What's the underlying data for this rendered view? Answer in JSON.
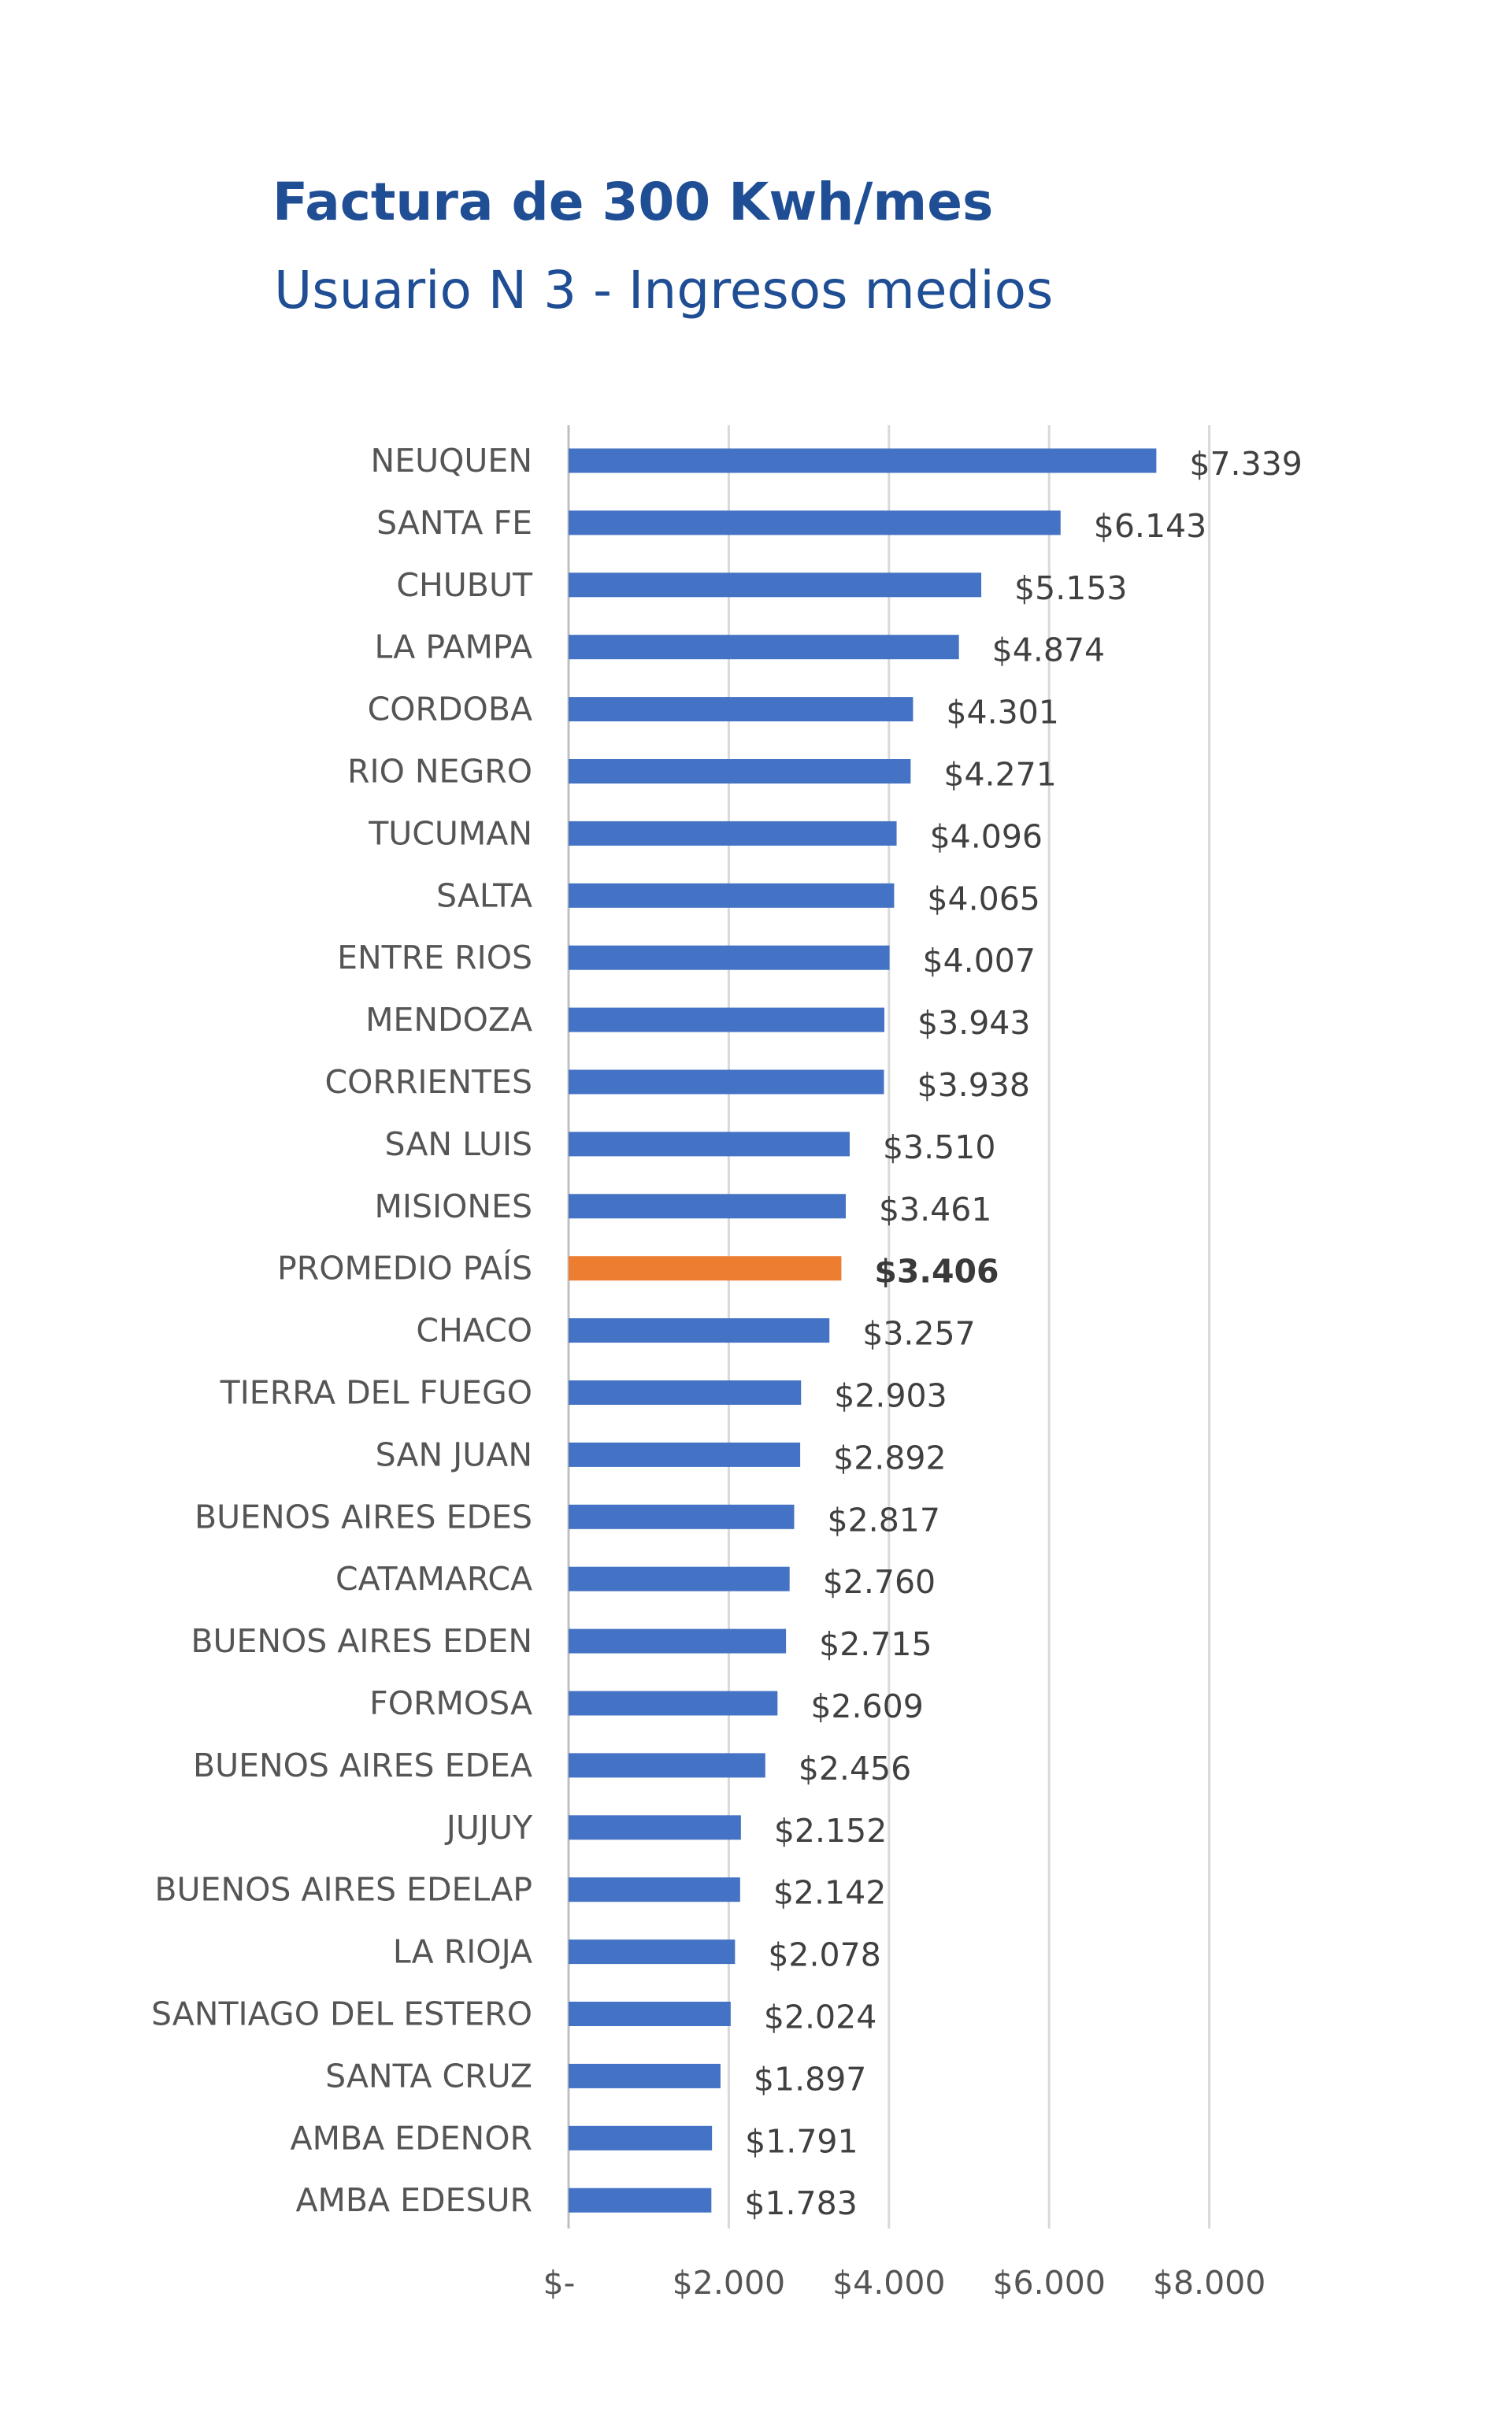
{
  "chart_data": {
    "type": "bar",
    "orientation": "horizontal",
    "title": "Factura de 300 Kwh/mes",
    "subtitle": "Usuario N 3 - Ingresos medios",
    "xlim": [
      0,
      8000
    ],
    "xticks": [
      0,
      2000,
      4000,
      6000,
      8000
    ],
    "xtick_labels": [
      "$-",
      "$2.000",
      "$4.000",
      "$6.000",
      "$8.000"
    ],
    "grid": true,
    "colors": {
      "bar": "#4472c4",
      "highlight": "#ed7d31",
      "grid": "#d9d9d9"
    },
    "highlight": "PROMEDIO PAÍS",
    "categories": [
      "NEUQUEN",
      "SANTA FE",
      "CHUBUT",
      "LA PAMPA",
      "CORDOBA",
      "RIO NEGRO",
      "TUCUMAN",
      "SALTA",
      "ENTRE RIOS",
      "MENDOZA",
      "CORRIENTES",
      "SAN LUIS",
      "MISIONES",
      "PROMEDIO PAÍS",
      "CHACO",
      "TIERRA DEL FUEGO",
      "SAN JUAN",
      "BUENOS AIRES EDES",
      "CATAMARCA",
      "BUENOS AIRES EDEN",
      "FORMOSA",
      "BUENOS AIRES EDEA",
      "JUJUY",
      "BUENOS AIRES EDELAP",
      "LA RIOJA",
      "SANTIAGO DEL ESTERO",
      "SANTA CRUZ",
      "AMBA EDENOR",
      "AMBA EDESUR"
    ],
    "values": [
      7339,
      6143,
      5153,
      4874,
      4301,
      4271,
      4096,
      4065,
      4007,
      3943,
      3938,
      3510,
      3461,
      3406,
      3257,
      2903,
      2892,
      2817,
      2760,
      2715,
      2609,
      2456,
      2152,
      2142,
      2078,
      2024,
      1897,
      1791,
      1783
    ],
    "value_labels": [
      "$7.339",
      "$6.143",
      "$5.153",
      "$4.874",
      "$4.301",
      "$4.271",
      "$4.096",
      "$4.065",
      "$4.007",
      "$3.943",
      "$3.938",
      "$3.510",
      "$3.461",
      "$3.406",
      "$3.257",
      "$2.903",
      "$2.892",
      "$2.817",
      "$2.760",
      "$2.715",
      "$2.609",
      "$2.456",
      "$2.152",
      "$2.142",
      "$2.078",
      "$2.024",
      "$1.897",
      "$1.791",
      "$1.783"
    ]
  }
}
